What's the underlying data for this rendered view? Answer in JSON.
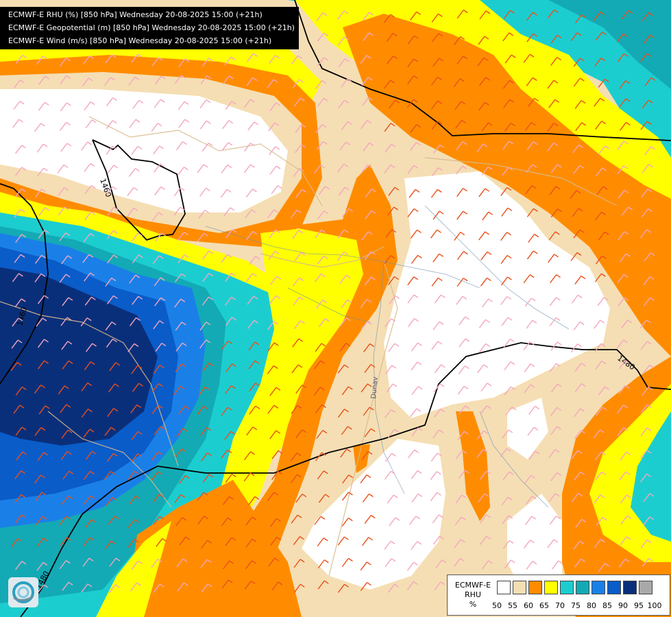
{
  "header": {
    "line1": "ECMWF-E RHU (%) [850 hPa] Wednesday 20-08-2025 15:00 (+21h)",
    "line2": "ECMWF-E Geopotential (m) [850 hPa] Wednesday 20-08-2025 15:00 (+21h)",
    "line3": "ECMWF-E Wind (m/s) [850 hPa] Wednesday 20-08-2025 15:00 (+21h)"
  },
  "contours": {
    "label_a": "1460",
    "label_b": "1460",
    "label_c": "1480",
    "label_d": "1480"
  },
  "river_label": "Dunav",
  "legend": {
    "title_line1": "ECMWF-E",
    "title_line2": "RHU",
    "title_line3": "%",
    "labels": [
      "50",
      "55",
      "60",
      "65",
      "70",
      "75",
      "80",
      "85",
      "90",
      "95",
      "100"
    ],
    "colors": [
      "#ffffff",
      "#f5deb3",
      "#ff8c00",
      "#ffff00",
      "#1ccdd0",
      "#13aab5",
      "#1a80e8",
      "#0a5cc8",
      "#0a2f7a",
      "#a9a9a9",
      "#555555"
    ]
  }
}
